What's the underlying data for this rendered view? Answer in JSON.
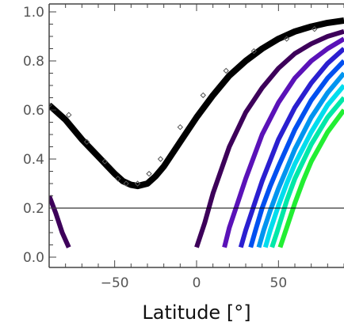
{
  "chart_data": {
    "type": "line",
    "title": "",
    "xlabel": "Latitude [°]",
    "ylabel": "",
    "xlim": [
      -90,
      90
    ],
    "ylim": [
      0,
      1
    ],
    "x_ticks": [
      -50,
      0,
      50
    ],
    "x_tick_labels": [
      "−50",
      "0",
      "50"
    ],
    "y_ticks": [
      0.0,
      0.2,
      0.4,
      0.6,
      0.8,
      1.0
    ],
    "y_tick_labels": [
      "0.0",
      "0.2",
      "0.4",
      "0.6",
      "0.8",
      "1.0"
    ],
    "grid": false,
    "legend": "none",
    "reference_line": {
      "y": 0.2,
      "color": "#000000"
    },
    "observed_points": {
      "x": [
        -90,
        -78,
        -67,
        -56,
        -48,
        -43,
        -36,
        -29,
        -22,
        -10,
        4,
        18,
        35,
        55,
        72
      ],
      "y": [
        0.62,
        0.58,
        0.47,
        0.39,
        0.32,
        0.3,
        0.3,
        0.34,
        0.4,
        0.53,
        0.66,
        0.76,
        0.84,
        0.89,
        0.93
      ],
      "color": "#555555"
    },
    "series": [
      {
        "color": "#000000",
        "x": [
          -90,
          -80,
          -70,
          -60,
          -50,
          -45,
          -40,
          -36,
          -30,
          -25,
          -20,
          -10,
          0,
          10,
          20,
          30,
          40,
          50,
          60,
          70,
          80,
          90
        ],
        "y": [
          0.62,
          0.56,
          0.48,
          0.41,
          0.34,
          0.31,
          0.295,
          0.29,
          0.3,
          0.33,
          0.37,
          0.47,
          0.57,
          0.66,
          0.74,
          0.8,
          0.85,
          0.89,
          0.92,
          0.94,
          0.955,
          0.965
        ]
      },
      {
        "color": "#3d005a",
        "x": [
          -90,
          -86,
          -82,
          -78
        ],
        "y": [
          0.25,
          0.18,
          0.1,
          0.04
        ]
      },
      {
        "color": "#3d005a",
        "x": [
          0,
          5,
          10,
          20,
          30,
          40,
          50,
          60,
          70,
          80,
          90
        ],
        "y": [
          0.04,
          0.14,
          0.26,
          0.45,
          0.59,
          0.69,
          0.77,
          0.83,
          0.87,
          0.9,
          0.92
        ]
      },
      {
        "color": "#5a12b8",
        "x": [
          17,
          20,
          25,
          30,
          40,
          50,
          60,
          70,
          80,
          90
        ],
        "y": [
          0.04,
          0.12,
          0.22,
          0.32,
          0.5,
          0.63,
          0.73,
          0.8,
          0.85,
          0.89
        ]
      },
      {
        "color": "#2a1fd0",
        "x": [
          27,
          30,
          35,
          40,
          50,
          60,
          70,
          80,
          90
        ],
        "y": [
          0.04,
          0.11,
          0.21,
          0.31,
          0.48,
          0.61,
          0.71,
          0.79,
          0.85
        ]
      },
      {
        "color": "#0050f0",
        "x": [
          33,
          36,
          40,
          45,
          50,
          60,
          70,
          80,
          90
        ],
        "y": [
          0.04,
          0.11,
          0.2,
          0.29,
          0.37,
          0.52,
          0.64,
          0.73,
          0.8
        ]
      },
      {
        "color": "#0095f0",
        "x": [
          38,
          41,
          45,
          50,
          55,
          60,
          70,
          80,
          90
        ],
        "y": [
          0.04,
          0.11,
          0.19,
          0.28,
          0.36,
          0.44,
          0.57,
          0.67,
          0.75
        ]
      },
      {
        "color": "#00ddee",
        "x": [
          42,
          45,
          50,
          55,
          60,
          70,
          80,
          90
        ],
        "y": [
          0.04,
          0.11,
          0.21,
          0.3,
          0.38,
          0.51,
          0.62,
          0.7
        ]
      },
      {
        "color": "#00e8a8",
        "x": [
          46,
          49,
          55,
          60,
          70,
          80,
          90
        ],
        "y": [
          0.04,
          0.1,
          0.23,
          0.32,
          0.46,
          0.57,
          0.65
        ]
      },
      {
        "color": "#22ee33",
        "x": [
          51,
          55,
          60,
          65,
          70,
          80,
          90
        ],
        "y": [
          0.04,
          0.12,
          0.22,
          0.31,
          0.39,
          0.51,
          0.6
        ]
      }
    ]
  }
}
